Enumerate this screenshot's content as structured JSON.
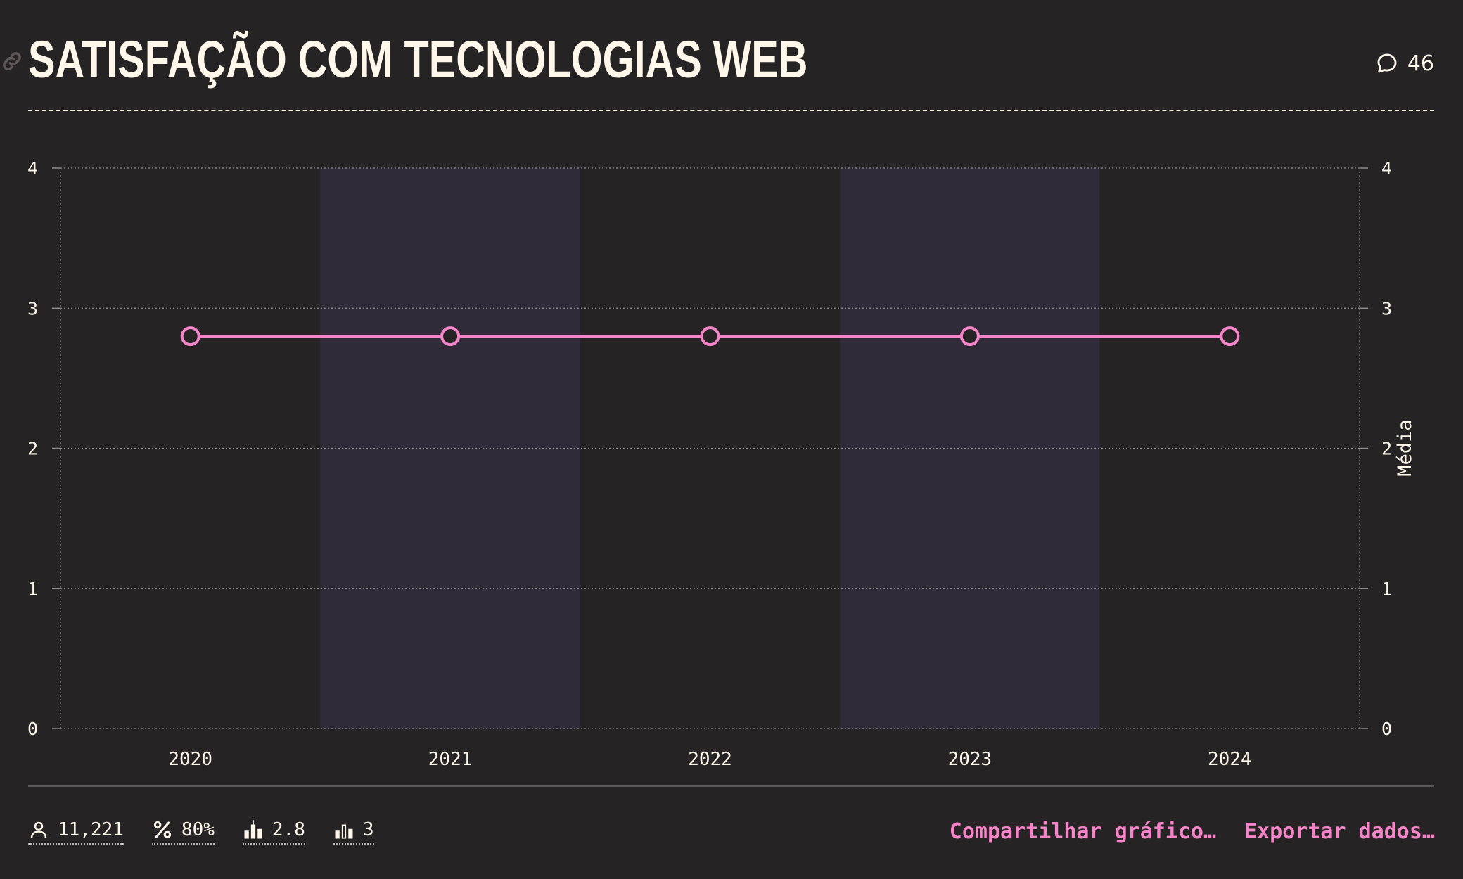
{
  "header": {
    "title": "Satisfação com tecnologias web",
    "comments_count": "46"
  },
  "chart_data": {
    "type": "line",
    "title": "Satisfação com tecnologias web",
    "categories": [
      "2020",
      "2021",
      "2022",
      "2023",
      "2024"
    ],
    "series": [
      {
        "values": [
          2.8,
          2.8,
          2.8,
          2.8,
          2.8
        ]
      }
    ],
    "xlabel": "",
    "ylabel": "Média",
    "ylim": [
      0,
      4
    ],
    "yticks": [
      0,
      1,
      2,
      3,
      4
    ],
    "grid": true,
    "alternate_column_shading": true,
    "colors": {
      "line": "#f584c8",
      "marker_fill": "#262324",
      "grid": "#8f898a",
      "shade": "#302b39",
      "text": "#fff7ea"
    }
  },
  "footer": {
    "stats": [
      {
        "icon": "user-icon",
        "value": "11,221"
      },
      {
        "icon": "percent-icon",
        "value": "80%"
      },
      {
        "icon": "average-icon",
        "value": "2.8"
      },
      {
        "icon": "median-icon",
        "value": "3"
      }
    ],
    "actions": [
      {
        "label": "Compartilhar gráfico…"
      },
      {
        "label": "Exportar dados…"
      }
    ]
  }
}
